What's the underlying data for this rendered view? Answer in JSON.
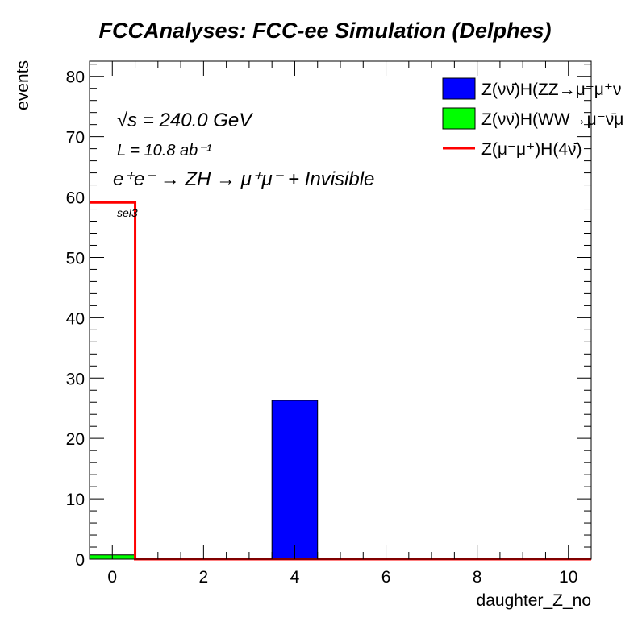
{
  "colors": {
    "zz_fill": "#0000ff",
    "ww_fill": "#00ff00",
    "signal_line": "#ff0000",
    "axis": "#000000"
  },
  "chart_data": {
    "type": "bar",
    "title": "FCCAnalyses: FCC-ee Simulation (Delphes)",
    "xlabel": "daughter_Z_no",
    "ylabel": "events",
    "xlim": [
      -0.5,
      10.5
    ],
    "ylim": [
      0,
      82.5
    ],
    "xticks": [
      "0",
      "2",
      "4",
      "6",
      "8",
      "10"
    ],
    "yticks": [
      "0",
      "10",
      "20",
      "30",
      "40",
      "50",
      "60",
      "70",
      "80"
    ],
    "bin_edges": [
      -0.5,
      0.5,
      1.5,
      2.5,
      3.5,
      4.5,
      5.5,
      6.5,
      7.5,
      8.5,
      9.5,
      10.5
    ],
    "series": [
      {
        "name": "Z(νν̄)H(ZZ→μ⁻μ⁺ν",
        "style": "stacked-fill",
        "color": "#0000ff",
        "values": [
          0,
          0,
          0,
          0,
          26.3,
          0,
          0,
          0,
          0,
          0,
          0
        ]
      },
      {
        "name": "Z(νν̄)H(WW→μ⁻ν̄μ",
        "style": "stacked-fill",
        "color": "#00ff00",
        "values": [
          0.7,
          0,
          0,
          0,
          0,
          0,
          0,
          0,
          0,
          0,
          0
        ]
      },
      {
        "name": "Z(μ⁻μ⁺)H(4ν̄)",
        "style": "line",
        "color": "#ff0000",
        "values": [
          59.1,
          0,
          0,
          0,
          0,
          0,
          0,
          0,
          0,
          0,
          0
        ]
      }
    ],
    "legend_position": "top-right",
    "annotations": {
      "sqrt_s": "√s = 240.0 GeV",
      "lumi": "L = 10.8 ab⁻¹",
      "process": "e⁺e⁻ → ZH → μ⁺μ⁻ + Invisible",
      "selection": "sel3"
    }
  }
}
